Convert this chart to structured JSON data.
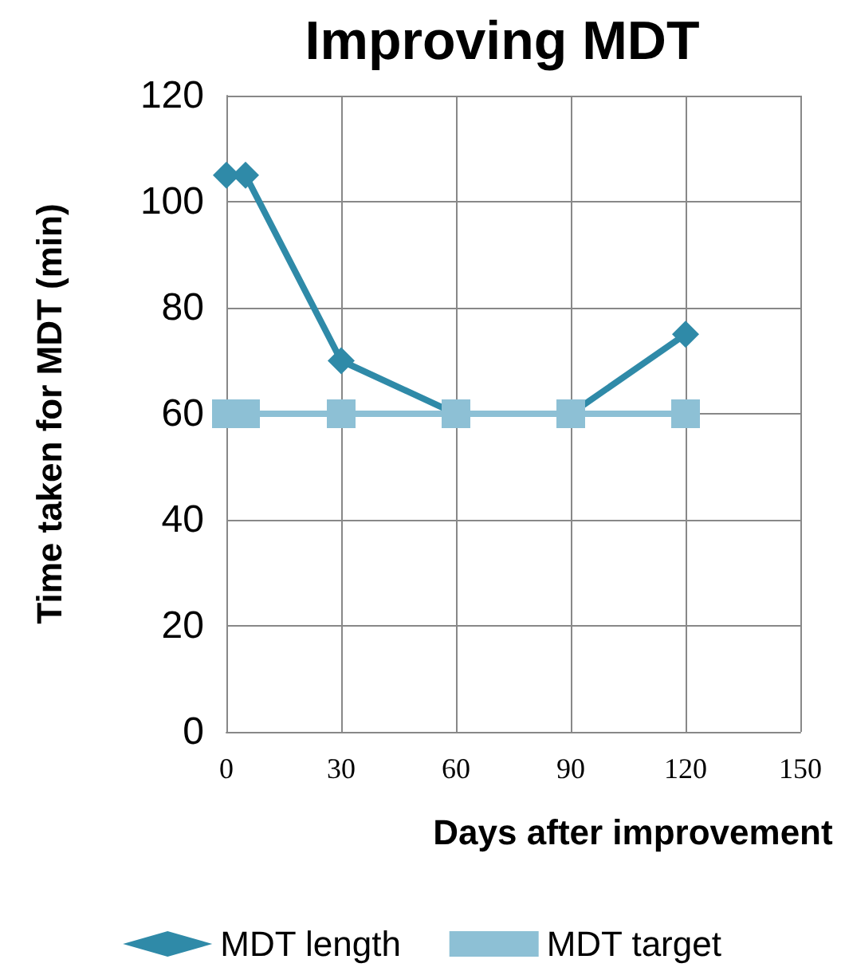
{
  "chart_data": {
    "type": "line",
    "title": "Improving MDT",
    "xlabel": "Days after improvement",
    "ylabel": "Time taken for MDT (min)",
    "series": [
      {
        "name": "MDT length",
        "color": "#2f8aa8",
        "marker": "diamond",
        "x": [
          0,
          5,
          30,
          60,
          90,
          120
        ],
        "values": [
          105,
          105,
          70,
          60,
          60,
          75
        ]
      },
      {
        "name": "MDT target",
        "color": "#8dc0d5",
        "marker": "square",
        "x": [
          0,
          5,
          30,
          60,
          90,
          120
        ],
        "values": [
          60,
          60,
          60,
          60,
          60,
          60
        ]
      }
    ],
    "xlim": [
      0,
      150
    ],
    "xticks": [
      0,
      30,
      60,
      90,
      120,
      150
    ],
    "ylim": [
      0,
      120
    ],
    "yticks": [
      0,
      20,
      40,
      60,
      80,
      100,
      120
    ],
    "grid": true,
    "legend": "bottom",
    "line_style": "solid"
  }
}
